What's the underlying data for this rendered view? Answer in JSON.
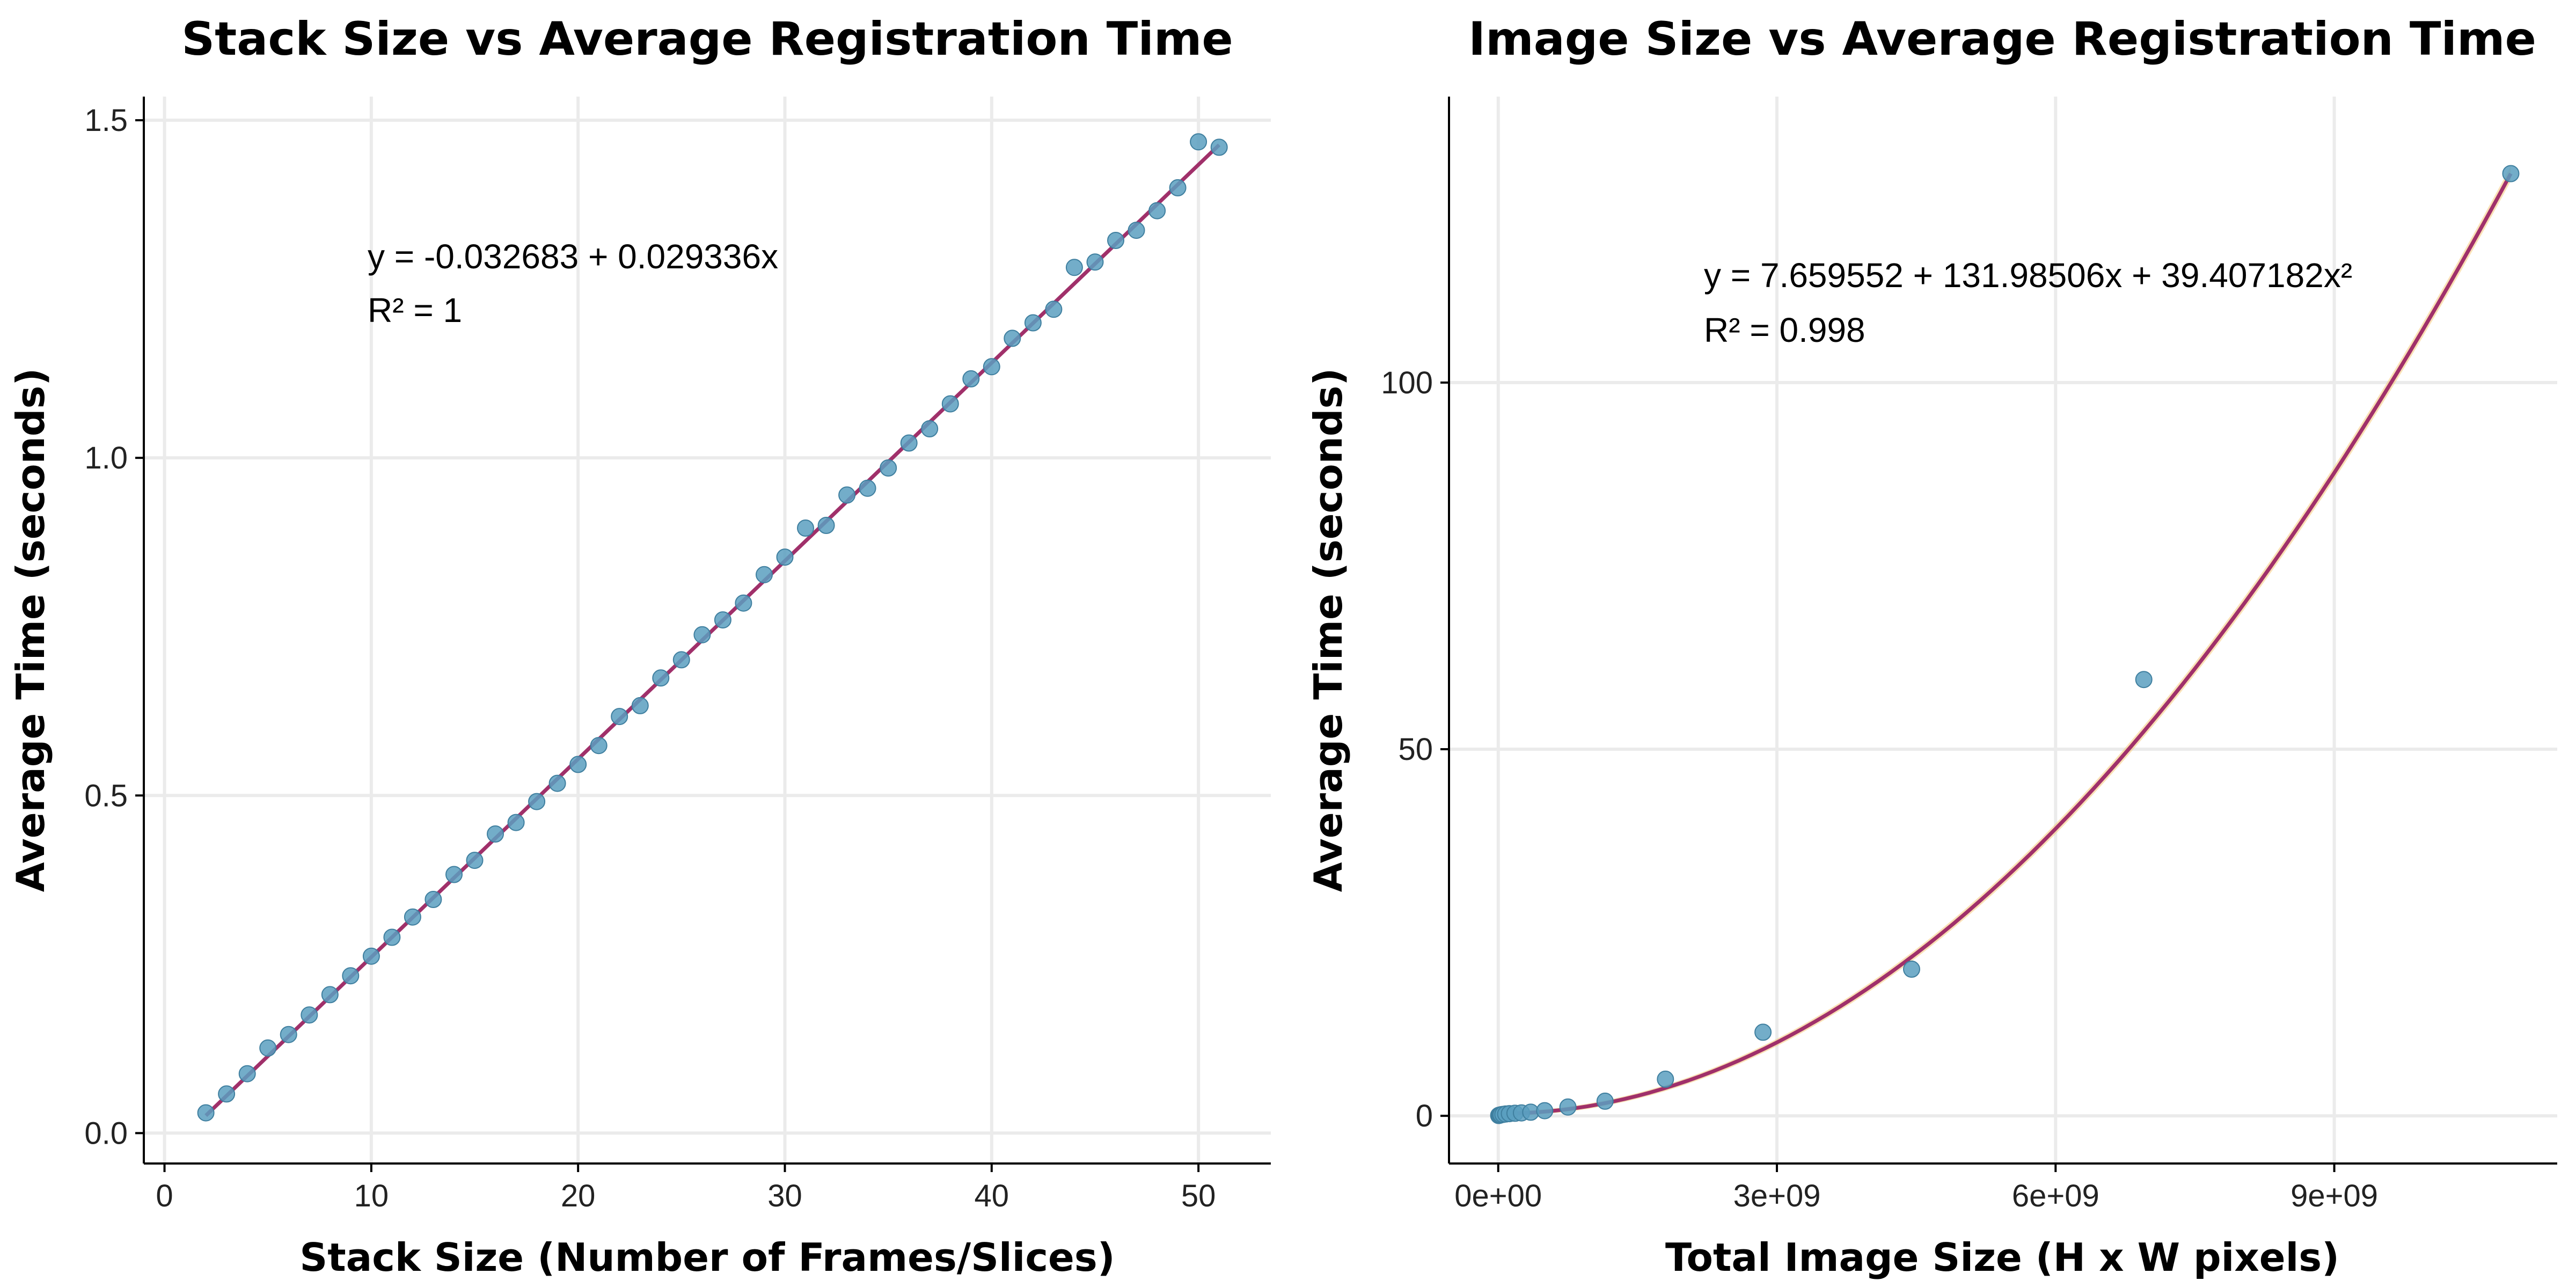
{
  "colors": {
    "points": "#5b9fbf",
    "fit_line": "#a0306a",
    "ribbon": "#f5c97a"
  },
  "chart_data": [
    {
      "type": "scatter",
      "title": "Stack Size vs Average Registration Time",
      "xlabel": "Stack Size (Number of Frames/Slices)",
      "ylabel": "Average Time (seconds)",
      "xlim": [
        -1,
        53.5
      ],
      "ylim": [
        -0.045,
        1.535
      ],
      "xticks": [
        0,
        10,
        20,
        30,
        40,
        50
      ],
      "xtick_labels": [
        "0",
        "10",
        "20",
        "30",
        "40",
        "50"
      ],
      "yticks": [
        0.0,
        0.5,
        1.0,
        1.5
      ],
      "ytick_labels": [
        "0.0",
        "0.5",
        "1.0",
        "1.5"
      ],
      "grid": true,
      "annotation": [
        "y = -0.032683 + 0.029336x",
        "R² = 1"
      ],
      "fit": {
        "kind": "linear",
        "intercept": -0.032683,
        "slope": 0.029336,
        "x_range": [
          2,
          51
        ]
      },
      "x": [
        2,
        3,
        4,
        5,
        6,
        7,
        8,
        9,
        10,
        11,
        12,
        13,
        14,
        15,
        16,
        17,
        18,
        19,
        20,
        21,
        22,
        23,
        24,
        25,
        26,
        27,
        28,
        29,
        30,
        31,
        32,
        33,
        34,
        35,
        36,
        37,
        38,
        39,
        40,
        41,
        42,
        43,
        44,
        45,
        46,
        47,
        48,
        49,
        50,
        51
      ],
      "y": [
        0.03,
        0.058,
        0.088,
        0.126,
        0.146,
        0.175,
        0.205,
        0.233,
        0.262,
        0.29,
        0.32,
        0.346,
        0.383,
        0.404,
        0.443,
        0.46,
        0.491,
        0.518,
        0.546,
        0.574,
        0.617,
        0.633,
        0.674,
        0.701,
        0.738,
        0.76,
        0.785,
        0.827,
        0.853,
        0.896,
        0.9,
        0.945,
        0.955,
        0.985,
        1.022,
        1.043,
        1.08,
        1.117,
        1.135,
        1.177,
        1.2,
        1.22,
        1.282,
        1.29,
        1.322,
        1.337,
        1.366,
        1.4,
        1.468,
        1.46
      ]
    },
    {
      "type": "scatter",
      "title": "Image Size vs Average Registration Time",
      "xlabel": "Total Image Size (H x W pixels)",
      "ylabel": "Average Time (seconds)",
      "xlim": [
        -530000000.0,
        11400000000.0
      ],
      "ylim": [
        -6.5,
        139
      ],
      "xticks": [
        0,
        3000000000.0,
        6000000000.0,
        9000000000.0
      ],
      "xtick_labels": [
        "0e+00",
        "3e+09",
        "6e+09",
        "9e+09"
      ],
      "yticks": [
        0,
        50,
        100
      ],
      "ytick_labels": [
        "0",
        "50",
        "100"
      ],
      "grid": true,
      "annotation": [
        "y = 7.659552 + 131.98506x + 39.407182x²",
        "R² = 0.998"
      ],
      "fit": {
        "kind": "quadratic",
        "x_range": [
          0,
          10900000000.0
        ],
        "y_at_min": 0.3,
        "y_at_max": 128.5
      },
      "x": [
        5000000.0,
        10000000.0,
        20000000.0,
        30000000.0,
        50000000.0,
        80000000.0,
        120000000.0,
        180000000.0,
        250000000.0,
        350000000.0,
        500000000.0,
        750000000.0,
        1150000000.0,
        1800000000.0,
        2850000000.0,
        4450000000.0,
        6950000000.0,
        10900000000.0
      ],
      "y": [
        0.05,
        0.08,
        0.1,
        0.15,
        0.2,
        0.25,
        0.3,
        0.35,
        0.4,
        0.5,
        0.7,
        1.2,
        2.0,
        5.0,
        11.4,
        20.0,
        59.5,
        128.5
      ]
    }
  ]
}
